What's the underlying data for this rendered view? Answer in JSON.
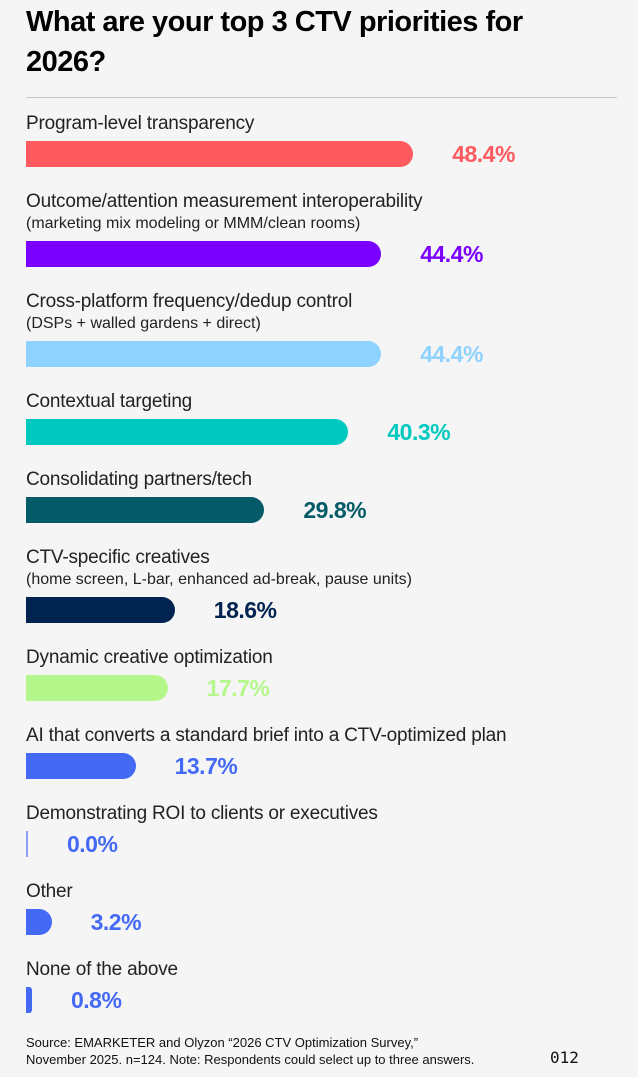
{
  "chart_data": {
    "type": "bar",
    "orientation": "horizontal",
    "title": "What are your top 3 CTV priorities for 2026?",
    "unit": "%",
    "items": [
      {
        "label": "Program-level transparency",
        "sublabel": "",
        "value": 48.4,
        "display": "48.4%",
        "color": "#FF5A5F"
      },
      {
        "label": "Outcome/attention measurement interoperability",
        "sublabel": "(marketing mix modeling or MMM/clean rooms)",
        "value": 44.4,
        "display": "44.4%",
        "color": "#7A00FF"
      },
      {
        "label": "Cross-platform frequency/dedup control",
        "sublabel": "(DSPs + walled gardens + direct)",
        "value": 44.4,
        "display": "44.4%",
        "color": "#8ED2FF"
      },
      {
        "label": "Contextual targeting",
        "sublabel": "",
        "value": 40.3,
        "display": "40.3%",
        "color": "#00C9BF"
      },
      {
        "label": "Consolidating partners/tech",
        "sublabel": "",
        "value": 29.8,
        "display": "29.8%",
        "color": "#045A66"
      },
      {
        "label": "CTV-specific creatives",
        "sublabel": "(home screen, L-bar, enhanced ad-break, pause units)",
        "value": 18.6,
        "display": "18.6%",
        "color": "#00234F"
      },
      {
        "label": "Dynamic creative optimization",
        "sublabel": "",
        "value": 17.7,
        "display": "17.7%",
        "color": "#B5F78A"
      },
      {
        "label": "AI that converts a standard brief into a CTV-optimized plan",
        "sublabel": "",
        "value": 13.7,
        "display": "13.7%",
        "color": "#4469F5"
      },
      {
        "label": "Demonstrating ROI to clients or executives",
        "sublabel": "",
        "value": 0.0,
        "display": "0.0%",
        "color": "#4469F5"
      },
      {
        "label": "Other",
        "sublabel": "",
        "value": 3.2,
        "display": "3.2%",
        "color": "#4469F5"
      },
      {
        "label": "None of the above",
        "sublabel": "",
        "value": 0.8,
        "display": "0.8%",
        "color": "#4469F5"
      }
    ],
    "xlim": [
      0,
      48.4
    ]
  },
  "footer": {
    "source_line1": "Source: EMARKETER and Olyzon “2026 CTV Optimization Survey,”",
    "source_line2": "November 2025. n=124. Note: Respondents could select up to three answers.",
    "page_number": "012"
  }
}
